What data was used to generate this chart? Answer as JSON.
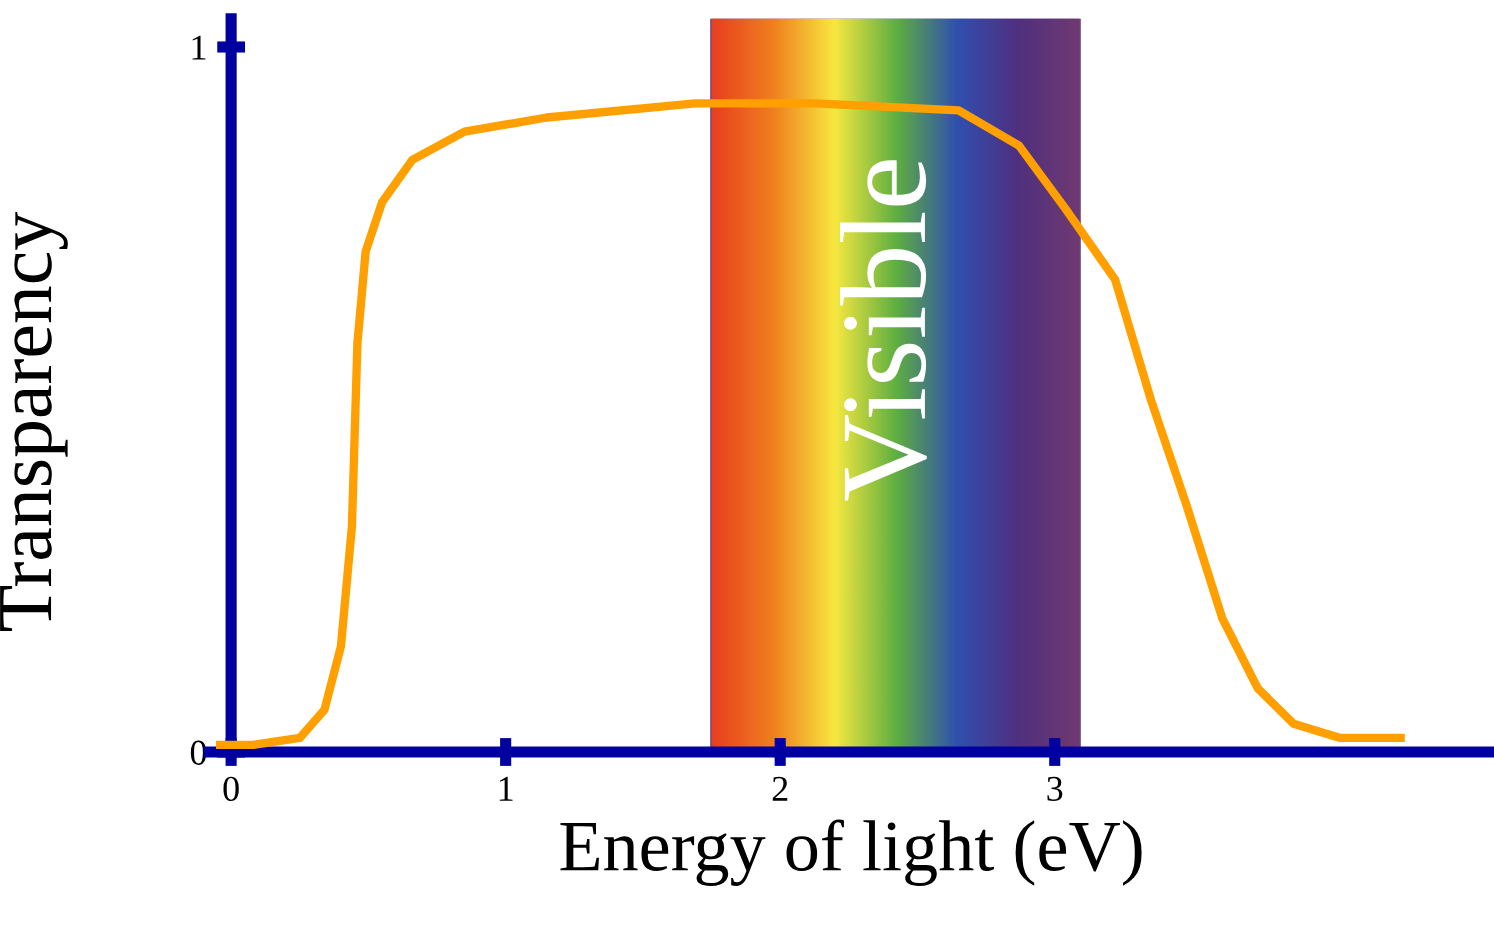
{
  "chart_data": {
    "type": "line",
    "xlabel": "Energy of light (eV)",
    "ylabel": "Transparency",
    "xlim": [
      -0.08,
      4.6
    ],
    "ylim": [
      0,
      1.04
    ],
    "xticks": [
      0,
      1,
      2,
      3
    ],
    "yticks": [
      0,
      1
    ],
    "grid": false,
    "marker": "none",
    "line_style": "solid",
    "series": [
      {
        "color": "#ffa000",
        "x": [
          -0.04,
          0.08,
          0.25,
          0.34,
          0.4,
          0.44,
          0.46,
          0.49,
          0.55,
          0.66,
          0.85,
          1.15,
          1.69,
          2.13,
          2.65,
          2.87,
          3.04,
          3.22,
          3.35,
          3.48,
          3.61,
          3.74,
          3.87,
          4.04,
          4.22,
          4.26
        ],
        "values": [
          0.01,
          0.01,
          0.02,
          0.06,
          0.15,
          0.32,
          0.58,
          0.71,
          0.78,
          0.84,
          0.88,
          0.9,
          0.92,
          0.92,
          0.91,
          0.86,
          0.77,
          0.67,
          0.5,
          0.35,
          0.19,
          0.09,
          0.04,
          0.02,
          0.02,
          0.02
        ]
      }
    ],
    "bands": [
      {
        "axis": "x",
        "from": 1.75,
        "to": 3.09,
        "label": "Visible",
        "color": "#6a4a8a"
      }
    ]
  }
}
